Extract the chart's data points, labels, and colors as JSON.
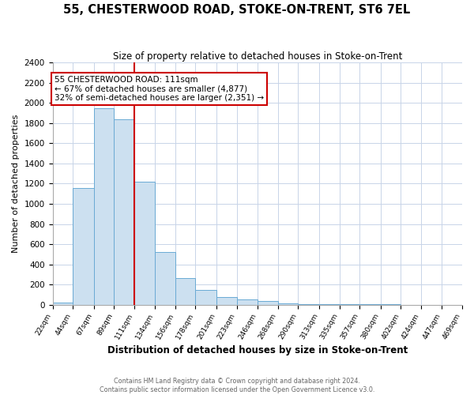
{
  "title": "55, CHESTERWOOD ROAD, STOKE-ON-TRENT, ST6 7EL",
  "subtitle": "Size of property relative to detached houses in Stoke-on-Trent",
  "xlabel": "Distribution of detached houses by size in Stoke-on-Trent",
  "ylabel": "Number of detached properties",
  "bin_edges": [
    22,
    44,
    67,
    89,
    111,
    134,
    156,
    178,
    201,
    223,
    246,
    268,
    290,
    313,
    335,
    357,
    380,
    402,
    424,
    447,
    469
  ],
  "bin_labels": [
    "22sqm",
    "44sqm",
    "67sqm",
    "89sqm",
    "111sqm",
    "134sqm",
    "156sqm",
    "178sqm",
    "201sqm",
    "223sqm",
    "246sqm",
    "268sqm",
    "290sqm",
    "313sqm",
    "335sqm",
    "357sqm",
    "380sqm",
    "402sqm",
    "424sqm",
    "447sqm",
    "469sqm"
  ],
  "counts": [
    25,
    1160,
    1950,
    1840,
    1220,
    520,
    265,
    145,
    80,
    50,
    38,
    15,
    8,
    5,
    3,
    2,
    2,
    1,
    1,
    1
  ],
  "bar_color": "#cce0f0",
  "bar_edge_color": "#6aaad4",
  "property_size": 111,
  "red_line_color": "#cc0000",
  "annotation_title": "55 CHESTERWOOD ROAD: 111sqm",
  "annotation_line1": "← 67% of detached houses are smaller (4,877)",
  "annotation_line2": "32% of semi-detached houses are larger (2,351) →",
  "annotation_box_color": "#ffffff",
  "annotation_box_edge_color": "#cc0000",
  "ylim": [
    0,
    2400
  ],
  "yticks": [
    0,
    200,
    400,
    600,
    800,
    1000,
    1200,
    1400,
    1600,
    1800,
    2000,
    2200,
    2400
  ],
  "grid_color": "#c8d4e8",
  "background_color": "#ffffff",
  "footer_line1": "Contains HM Land Registry data © Crown copyright and database right 2024.",
  "footer_line2": "Contains public sector information licensed under the Open Government Licence v3.0."
}
